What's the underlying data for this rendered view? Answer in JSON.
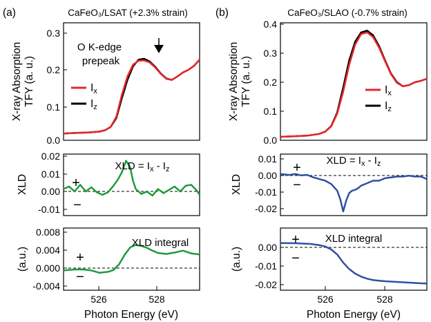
{
  "panel_labels": [
    "(a)",
    "(b)"
  ],
  "chart_data": [
    {
      "id": "a_top",
      "type": "line",
      "panel": "(a)",
      "title": "CaFeO₃/LSAT (+2.3% strain)",
      "xlabel": "Photon Energy (eV)",
      "ylabel": "X-ray Absorption TFY (a. u.)",
      "xlim": [
        524.5,
        529.4
      ],
      "ylim": [
        0.0,
        0.35
      ],
      "yticks": [
        "0.0",
        "0.1",
        "0.2",
        "0.3"
      ],
      "annotations": [
        "O K-edge",
        "prepeak"
      ],
      "series": [
        {
          "name": "Ix",
          "color": "#e8262b",
          "x": [
            524.5,
            525.0,
            525.4,
            525.8,
            526.0,
            526.2,
            526.4,
            526.6,
            526.8,
            527.0,
            527.2,
            527.4,
            527.6,
            527.8,
            528.0,
            528.2,
            528.4,
            528.6,
            528.8,
            529.0,
            529.2,
            529.4
          ],
          "y": [
            0.02,
            0.022,
            0.023,
            0.026,
            0.03,
            0.04,
            0.07,
            0.135,
            0.19,
            0.225,
            0.237,
            0.238,
            0.232,
            0.217,
            0.198,
            0.183,
            0.18,
            0.19,
            0.202,
            0.21,
            0.222,
            0.24
          ]
        },
        {
          "name": "Iz",
          "color": "#000000",
          "x": [
            524.5,
            525.0,
            525.4,
            525.8,
            526.0,
            526.2,
            526.4,
            526.6,
            526.8,
            527.0,
            527.2,
            527.4,
            527.6,
            527.8,
            528.0,
            528.2,
            528.4,
            528.6,
            528.8,
            529.0,
            529.2,
            529.4
          ],
          "y": [
            0.02,
            0.022,
            0.023,
            0.026,
            0.03,
            0.04,
            0.066,
            0.125,
            0.18,
            0.22,
            0.24,
            0.243,
            0.235,
            0.219,
            0.199,
            0.184,
            0.18,
            0.19,
            0.202,
            0.21,
            0.222,
            0.24
          ]
        }
      ]
    },
    {
      "id": "a_mid",
      "type": "line",
      "panel": "(a)",
      "ylabel": "XLD",
      "annotation": "XLD = Ix - Iz",
      "xlim": [
        524.5,
        529.4
      ],
      "ylim": [
        -0.016,
        0.021
      ],
      "yticks": [
        "0.02",
        "0.01",
        "0.00",
        "-0.01"
      ],
      "series": [
        {
          "name": "XLD",
          "color": "#1f9a3a",
          "x": [
            524.5,
            524.7,
            524.9,
            525.1,
            525.3,
            525.5,
            525.7,
            525.9,
            526.1,
            526.3,
            526.45,
            526.6,
            526.75,
            526.9,
            527.0,
            527.1,
            527.3,
            527.5,
            527.7,
            527.9,
            528.1,
            528.3,
            528.5,
            528.7,
            528.9,
            529.1,
            529.3,
            529.4
          ],
          "y": [
            0.0,
            0.0015,
            -0.0015,
            0.0025,
            -0.0015,
            0.001,
            -0.002,
            -0.0035,
            -0.002,
            0.002,
            0.0055,
            0.01,
            0.017,
            0.013,
            0.005,
            0.0,
            -0.003,
            -0.0015,
            -0.004,
            0.0,
            -0.0025,
            -0.0005,
            0.0015,
            -0.0015,
            0.002,
            0.0025,
            -0.001,
            -0.0035
          ]
        }
      ]
    },
    {
      "id": "a_bot",
      "type": "line",
      "panel": "(a)",
      "ylabel": "(a.u.)",
      "annotation": "XLD integral",
      "xlim": [
        524.5,
        529.4
      ],
      "ylim": [
        -0.0042,
        0.009
      ],
      "yticks": [
        "0.008",
        "0.004",
        "0.000",
        "-0.004"
      ],
      "xticks": [
        "526",
        "528"
      ],
      "xlabel": "Photon Energy (eV)",
      "series": [
        {
          "name": "XLD integral",
          "color": "#1f9a3a",
          "x": [
            524.5,
            524.9,
            525.2,
            525.5,
            525.8,
            526.1,
            526.3,
            526.5,
            526.7,
            526.9,
            527.1,
            527.3,
            527.5,
            527.7,
            527.9,
            528.2,
            528.5,
            528.8,
            529.1,
            529.4
          ],
          "y": [
            0.0,
            0.0002,
            0.0002,
            0.0,
            -0.0005,
            -0.0003,
            0.0001,
            0.0013,
            0.0033,
            0.0049,
            0.0054,
            0.0052,
            0.0048,
            0.0042,
            0.0037,
            0.0035,
            0.0038,
            0.0042,
            0.0036,
            0.0034
          ]
        }
      ]
    },
    {
      "id": "b_top",
      "type": "line",
      "panel": "(b)",
      "title": "CaFeO₃/SLAO (-0.7% strain)",
      "xlabel": "Photon Energy (eV)",
      "ylabel": "X-ray Absorption TFY (a. u.)",
      "xlim": [
        524.5,
        529.4
      ],
      "ylim": [
        0.0,
        0.405
      ],
      "yticks": [
        "0.4",
        "0.3",
        "0.2",
        "0.1",
        "0.0"
      ],
      "series": [
        {
          "name": "Ix",
          "color": "#e8262b",
          "x": [
            524.5,
            525.0,
            525.4,
            525.8,
            526.0,
            526.2,
            526.4,
            526.6,
            526.8,
            527.0,
            527.2,
            527.4,
            527.6,
            527.8,
            528.0,
            528.2,
            528.4,
            528.6,
            528.8,
            529.0,
            529.2,
            529.4
          ],
          "y": [
            0.012,
            0.014,
            0.016,
            0.022,
            0.03,
            0.048,
            0.092,
            0.168,
            0.26,
            0.33,
            0.366,
            0.372,
            0.356,
            0.32,
            0.273,
            0.228,
            0.198,
            0.186,
            0.19,
            0.2,
            0.205,
            0.212
          ]
        },
        {
          "name": "Iz",
          "color": "#000000",
          "x": [
            524.5,
            525.0,
            525.4,
            525.8,
            526.0,
            526.2,
            526.4,
            526.6,
            526.8,
            527.0,
            527.2,
            527.4,
            527.6,
            527.8,
            528.0,
            528.2,
            528.4,
            528.6,
            528.8,
            529.0,
            529.2,
            529.4
          ],
          "y": [
            0.012,
            0.014,
            0.016,
            0.022,
            0.03,
            0.049,
            0.096,
            0.182,
            0.275,
            0.34,
            0.372,
            0.378,
            0.362,
            0.325,
            0.276,
            0.23,
            0.2,
            0.186,
            0.19,
            0.2,
            0.205,
            0.212
          ]
        }
      ]
    },
    {
      "id": "b_mid",
      "type": "line",
      "panel": "(b)",
      "ylabel": "XLD",
      "annotation": "XLD = Ix - Iz",
      "xlim": [
        524.5,
        529.4
      ],
      "ylim": [
        -0.025,
        0.012
      ],
      "yticks": [
        "0.01",
        "0.00",
        "-0.01",
        "-0.02"
      ],
      "series": [
        {
          "name": "XLD",
          "color": "#2f4fa2",
          "x": [
            524.5,
            524.8,
            525.0,
            525.2,
            525.4,
            525.6,
            525.8,
            526.0,
            526.2,
            526.4,
            526.5,
            526.6,
            526.7,
            526.8,
            526.9,
            527.0,
            527.1,
            527.2,
            527.4,
            527.6,
            527.8,
            528.0,
            528.2,
            528.4,
            528.6,
            528.8,
            529.0,
            529.2,
            529.4
          ],
          "y": [
            0.0,
            -0.0005,
            0.0,
            -0.0008,
            -0.0005,
            -0.002,
            -0.003,
            -0.004,
            -0.006,
            -0.01,
            -0.015,
            -0.0225,
            -0.016,
            -0.0115,
            -0.01,
            -0.0095,
            -0.0085,
            -0.007,
            -0.0055,
            -0.004,
            -0.004,
            -0.0025,
            -0.002,
            -0.0015,
            -0.0015,
            -0.001,
            -0.0015,
            -0.0015,
            -0.003
          ]
        }
      ]
    },
    {
      "id": "b_bot",
      "type": "line",
      "panel": "(b)",
      "ylabel": "(a.u.)",
      "annotation": "XLD integral",
      "xlim": [
        524.5,
        529.4
      ],
      "ylim": [
        -0.0205,
        0.0065
      ],
      "yticks": [
        "0.00",
        "-0.01",
        "-0.02"
      ],
      "xticks": [
        "526",
        "528"
      ],
      "xlabel": "Photon Energy (eV)",
      "series": [
        {
          "name": "XLD integral",
          "color": "#2f4fa2",
          "x": [
            524.5,
            525.0,
            525.5,
            525.8,
            526.0,
            526.2,
            526.4,
            526.6,
            526.8,
            527.0,
            527.2,
            527.4,
            527.6,
            527.8,
            528.0,
            528.4,
            528.8,
            529.2,
            529.4
          ],
          "y": [
            0.0,
            -0.0001,
            -0.0004,
            -0.0009,
            -0.0015,
            -0.0028,
            -0.005,
            -0.0085,
            -0.0113,
            -0.0133,
            -0.0146,
            -0.0155,
            -0.0161,
            -0.0164,
            -0.0166,
            -0.0169,
            -0.0172,
            -0.0175,
            -0.0176
          ]
        }
      ]
    }
  ]
}
